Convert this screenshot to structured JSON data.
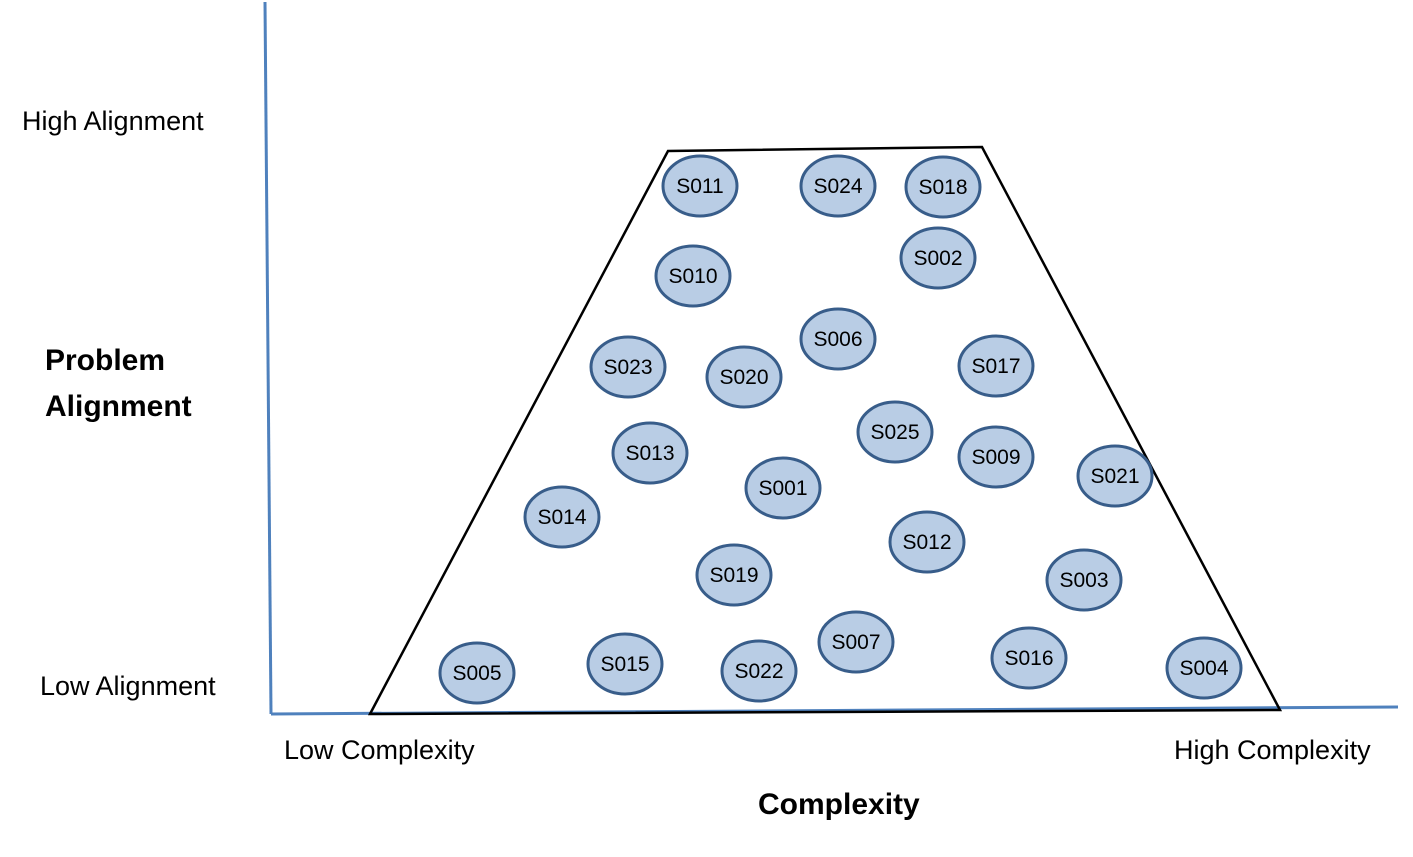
{
  "axes": {
    "y_title_line1": "Problem",
    "y_title_line2": "Alignment",
    "x_title": "Complexity",
    "y_high_label": "High Alignment",
    "y_low_label": "Low Alignment",
    "x_low_label": "Low Complexity",
    "x_high_label": "High Complexity",
    "axis_color": "#4f81bd"
  },
  "region": {
    "shape": "trapezoid",
    "stroke_color": "#000000"
  },
  "node_style": {
    "fill": "#b9cde5",
    "stroke": "#385d8a"
  },
  "nodes": [
    {
      "label": "S011"
    },
    {
      "label": "S024"
    },
    {
      "label": "S018"
    },
    {
      "label": "S002"
    },
    {
      "label": "S010"
    },
    {
      "label": "S006"
    },
    {
      "label": "S023"
    },
    {
      "label": "S020"
    },
    {
      "label": "S017"
    },
    {
      "label": "S025"
    },
    {
      "label": "S013"
    },
    {
      "label": "S009"
    },
    {
      "label": "S021"
    },
    {
      "label": "S001"
    },
    {
      "label": "S014"
    },
    {
      "label": "S012"
    },
    {
      "label": "S019"
    },
    {
      "label": "S003"
    },
    {
      "label": "S007"
    },
    {
      "label": "S016"
    },
    {
      "label": "S005"
    },
    {
      "label": "S015"
    },
    {
      "label": "S022"
    },
    {
      "label": "S004"
    }
  ]
}
